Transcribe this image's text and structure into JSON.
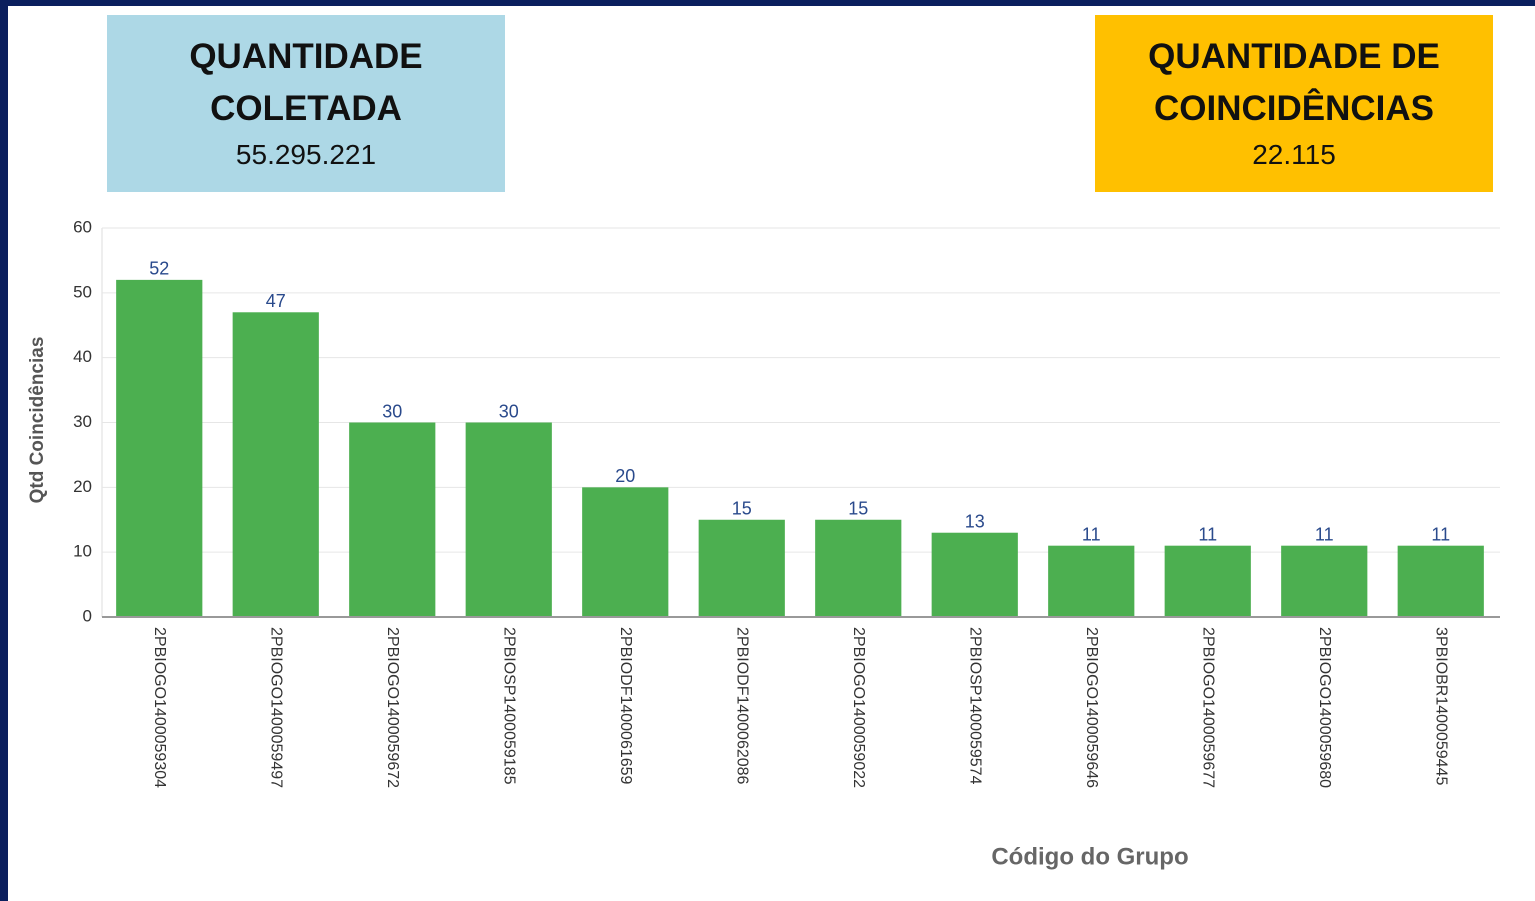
{
  "cards": [
    {
      "title": "QUANTIDADE COLETADA",
      "value": "55.295.221"
    },
    {
      "title": "QUANTIDADE DE COINCIDÊNCIAS",
      "value": "22.115"
    }
  ],
  "chart_data": {
    "type": "bar",
    "categories": [
      "2PBIOGO1400059304",
      "2PBIOGO1400059497",
      "2PBIOGO1400059672",
      "2PBIOSP1400059185",
      "2PBIODF1400061659",
      "2PBIODF1400062086",
      "2PBIOGO1400059022",
      "2PBIOSP1400059574",
      "2PBIOGO1400059646",
      "2PBIOGO1400059677",
      "2PBIOGO1400059680",
      "3PBIOBR1400059445"
    ],
    "values": [
      52,
      47,
      30,
      30,
      20,
      15,
      15,
      13,
      11,
      11,
      11,
      11
    ],
    "color": "#4caf50",
    "y_label": "Qtd Coincidências",
    "x_label": "Código do Grupo",
    "ylim": [
      0,
      60
    ],
    "yticks": [
      0,
      10,
      20,
      30,
      40,
      50,
      60
    ],
    "grid": true
  }
}
